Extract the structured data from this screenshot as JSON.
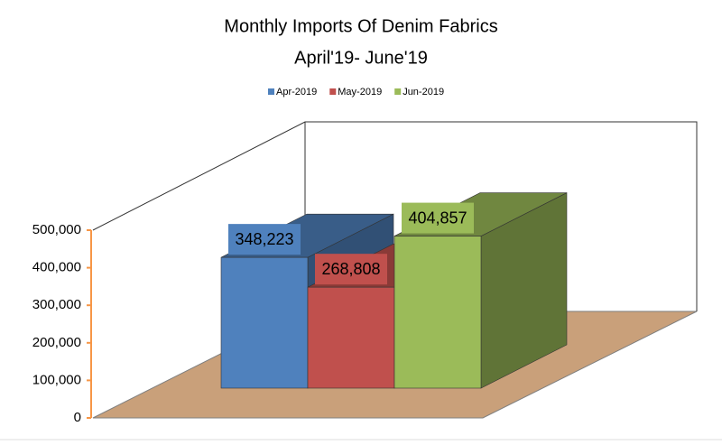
{
  "chart_data": {
    "type": "bar3d",
    "title": "Monthly Imports Of Denim Fabrics",
    "subtitle": "April'19- June'19",
    "series": [
      {
        "name": "Apr-2019",
        "color": "#4f81bd",
        "values": [
          348223
        ],
        "value_labels": [
          "348,223"
        ]
      },
      {
        "name": "May-2019",
        "color": "#c0504d",
        "values": [
          268808
        ],
        "value_labels": [
          "268,808"
        ]
      },
      {
        "name": "Jun-2019",
        "color": "#9bbb59",
        "values": [
          404857
        ],
        "value_labels": [
          "404,857"
        ]
      }
    ],
    "ylim": [
      0,
      500000
    ],
    "yticks": [
      0,
      {
        "value": 100000,
        "label": "100,000"
      },
      {
        "value": 200000,
        "label": "200,000"
      },
      {
        "value": 300000,
        "label": "300,000"
      },
      {
        "value": 400000,
        "label": "400,000"
      },
      {
        "value": 500000,
        "label": "500,000"
      }
    ],
    "legend": "top"
  }
}
